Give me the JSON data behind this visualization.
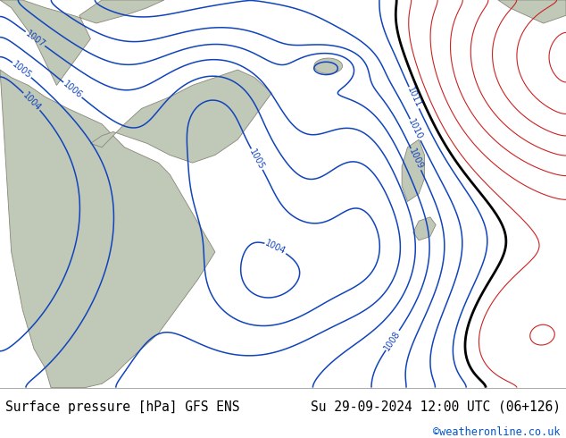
{
  "title_left": "Surface pressure [hPa] GFS ENS",
  "title_right": "Su 29-09-2024 12:00 UTC (06+126)",
  "credit": "©weatheronline.co.uk",
  "bg_color": "#c8f084",
  "land_color": "#c0c8b8",
  "coast_color": "#888878",
  "contour_color_blue": "#1144bb",
  "contour_color_red": "#cc2222",
  "contour_color_black": "#000000",
  "bottom_bar_color": "#ffffff",
  "font_size_bottom": 10.5,
  "figsize": [
    6.34,
    4.9
  ],
  "dpi": 100
}
